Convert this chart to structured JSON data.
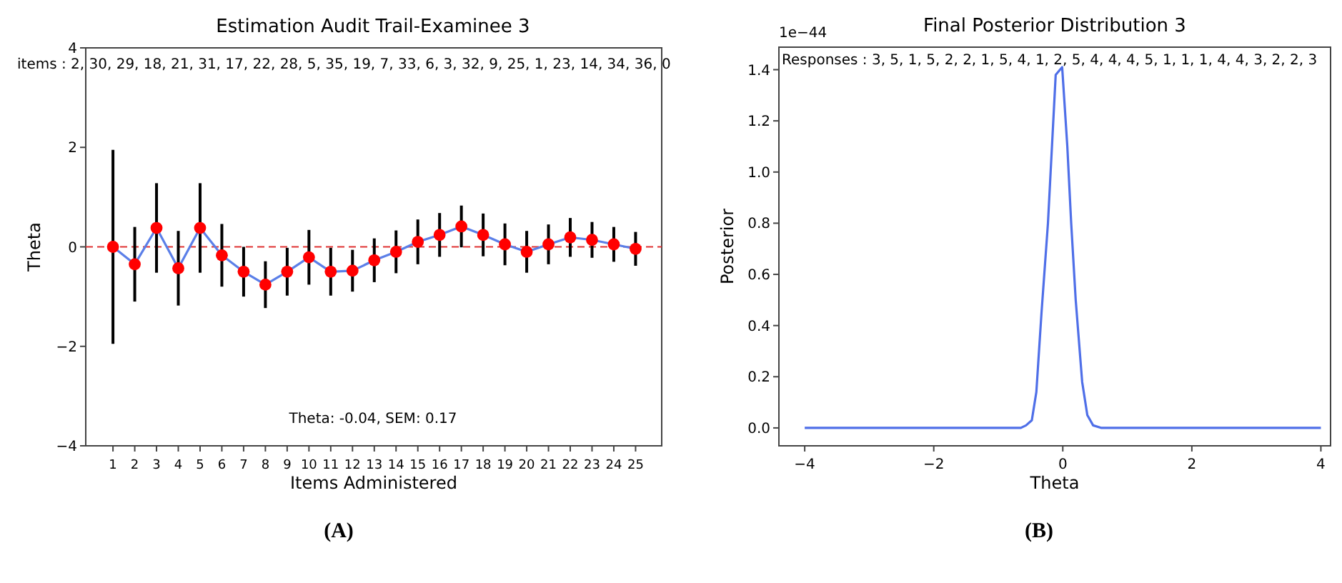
{
  "chart_data": [
    {
      "type": "line",
      "title": "Estimation Audit Trail-Examinee 3",
      "xlabel": "Items Administered",
      "ylabel": "Theta",
      "x": [
        1,
        2,
        3,
        4,
        5,
        6,
        7,
        8,
        9,
        10,
        11,
        12,
        13,
        14,
        15,
        16,
        17,
        18,
        19,
        20,
        21,
        22,
        23,
        24,
        25
      ],
      "xlim": [
        -0.25,
        26.2
      ],
      "xticks": [
        1,
        2,
        3,
        4,
        5,
        6,
        7,
        8,
        9,
        10,
        11,
        12,
        13,
        14,
        15,
        16,
        17,
        18,
        19,
        20,
        21,
        22,
        23,
        24,
        25
      ],
      "series": [
        {
          "type": "line",
          "color": "#5b7fe8",
          "marker": "none",
          "values": [
            0,
            -0.35,
            0.38,
            -0.43,
            0.38,
            -0.17,
            -0.5,
            -0.76,
            -0.5,
            -0.21,
            -0.5,
            -0.48,
            -0.27,
            -0.1,
            0.1,
            0.24,
            0.41,
            0.24,
            0.05,
            -0.1,
            0.05,
            0.19,
            0.14,
            0.05,
            -0.04
          ]
        },
        {
          "type": "scatter",
          "color": "#ff0000",
          "marker": "circle",
          "values": [
            0,
            -0.35,
            0.38,
            -0.43,
            0.38,
            -0.17,
            -0.5,
            -0.76,
            -0.5,
            -0.21,
            -0.5,
            -0.48,
            -0.27,
            -0.1,
            0.1,
            0.24,
            0.41,
            0.24,
            0.05,
            -0.1,
            0.05,
            0.19,
            0.14,
            0.05,
            -0.04
          ],
          "errors": [
            1.95,
            0.75,
            0.9,
            0.75,
            0.9,
            0.63,
            0.5,
            0.47,
            0.48,
            0.55,
            0.48,
            0.42,
            0.44,
            0.43,
            0.45,
            0.44,
            0.42,
            0.43,
            0.42,
            0.42,
            0.4,
            0.39,
            0.36,
            0.35,
            0.34
          ]
        }
      ],
      "ylim": [
        -4,
        4
      ],
      "yticks": [
        {
          "value": -4,
          "label": "−4"
        },
        {
          "value": -2,
          "label": "−2"
        },
        0,
        2,
        4
      ],
      "ref_lines": [
        {
          "axis": "y",
          "value": 0,
          "color": "#e03030",
          "line_style": "dashed"
        }
      ],
      "annotations": [
        "items : 2, 30, 29, 18, 21, 31, 17, 22, 28, 5, 35, 19, 7, 33, 6, 3, 32, 9, 25, 1, 23, 14, 34, 36, 0",
        "Theta: -0.04, SEM: 0.17",
        "(A)"
      ]
    },
    {
      "type": "line",
      "title": "Final Posterior Distribution 3",
      "xlabel": "Theta",
      "ylabel": "Posterior",
      "x": [
        -4,
        -1,
        -0.65,
        -0.57,
        -0.48,
        -0.41,
        -0.33,
        -0.23,
        -0.11,
        -0.01,
        0.07,
        0.13,
        0.2,
        0.3,
        0.38,
        0.47,
        0.6,
        1,
        4
      ],
      "series": [
        {
          "color": "#4f6fe8",
          "values": [
            0,
            0,
            0,
            0.01,
            0.03,
            0.14,
            0.45,
            0.8,
            1.38,
            1.41,
            1.1,
            0.8,
            0.5,
            0.18,
            0.05,
            0.01,
            0,
            0,
            0
          ]
        }
      ],
      "xlim": [
        -4.4,
        4.15
      ],
      "xticks": [
        {
          "value": -4,
          "label": "−4"
        },
        {
          "value": -2,
          "label": "−2"
        },
        0,
        2,
        4
      ],
      "ylim": [
        -0.07,
        1.488
      ],
      "yticks": [
        {
          "value": 0,
          "label": "0.0"
        },
        {
          "value": 0.2,
          "label": "0.2"
        },
        {
          "value": 0.4,
          "label": "0.4"
        },
        {
          "value": 0.6,
          "label": "0.6"
        },
        {
          "value": 0.8,
          "label": "0.8"
        },
        {
          "value": 1,
          "label": "1.0"
        },
        {
          "value": 1.2,
          "label": "1.2"
        },
        {
          "value": 1.4,
          "label": "1.4"
        }
      ],
      "annotations": [
        "Responses : 3, 5, 1, 5, 2, 2, 1, 5, 4, 1, 2, 5, 4, 4, 4, 5, 1, 1, 1, 4, 4, 3, 2, 2, 3",
        "1e−44",
        "(B)"
      ]
    }
  ]
}
